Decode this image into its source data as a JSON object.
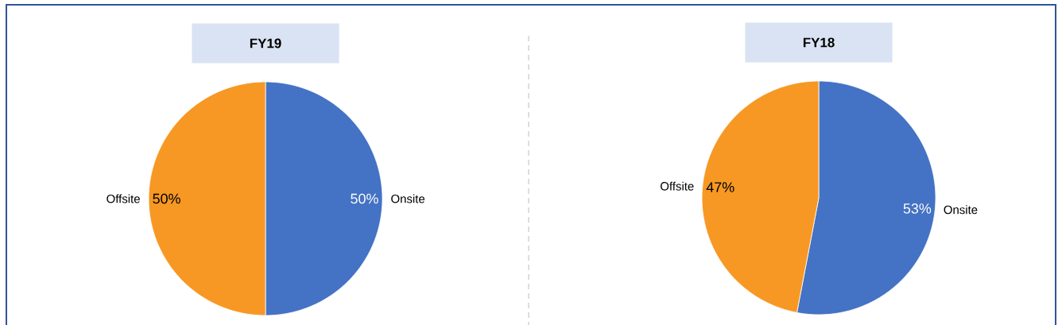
{
  "chart_data": [
    {
      "type": "pie",
      "title": "FY19",
      "categories": [
        "Onsite",
        "Offsite"
      ],
      "values": [
        50,
        50
      ],
      "colors": [
        "#4472c4",
        "#f79824"
      ],
      "value_labels": [
        "50%",
        "50%"
      ],
      "legend": false
    },
    {
      "type": "pie",
      "title": "FY18",
      "categories": [
        "Onsite",
        "Offsite"
      ],
      "values": [
        53,
        47
      ],
      "colors": [
        "#4472c4",
        "#f79824"
      ],
      "value_labels": [
        "53%",
        "47%"
      ],
      "legend": false
    }
  ]
}
